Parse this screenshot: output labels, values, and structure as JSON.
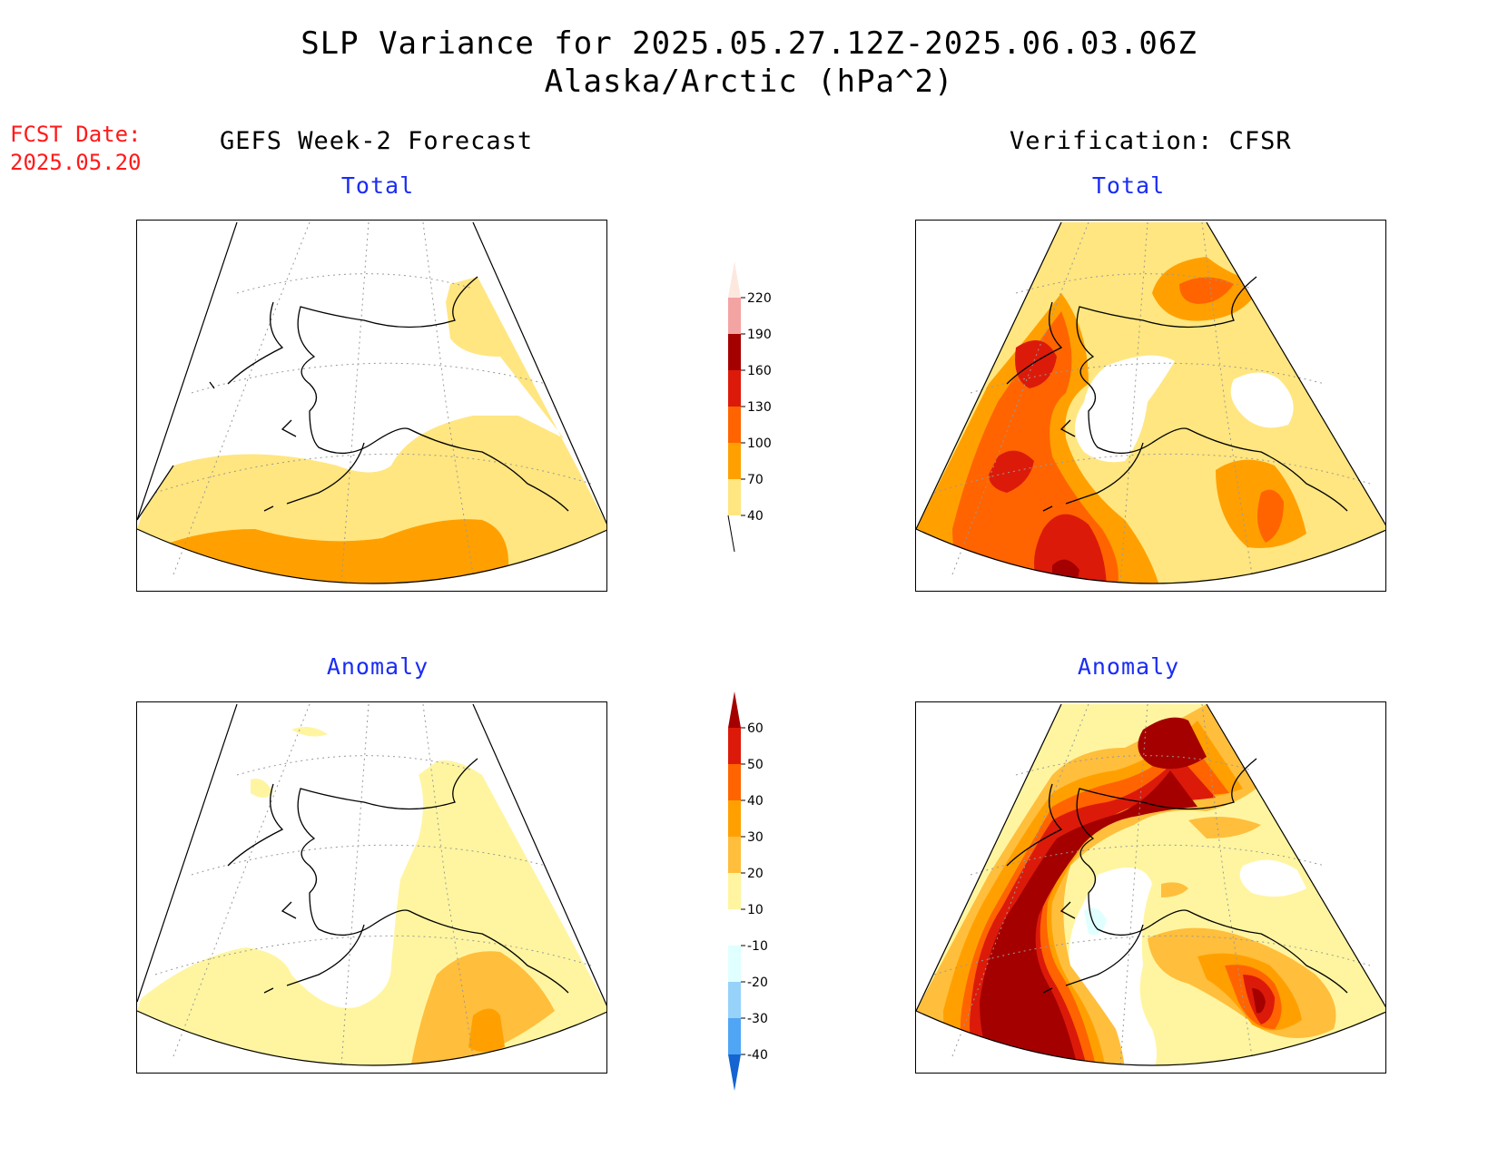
{
  "title": {
    "line1": "SLP Variance for 2025.05.27.12Z-2025.06.03.06Z",
    "line2": "Alaska/Arctic (hPa^2)"
  },
  "fcst_date": {
    "label": "FCST Date:",
    "value": "2025.05.20"
  },
  "columns": {
    "left": "GEFS Week-2 Forecast",
    "right": "Verification: CFSR"
  },
  "panels": {
    "top_left": "Total",
    "top_right": "Total",
    "bottom_left": "Anomaly",
    "bottom_right": "Anomaly"
  },
  "total_colorbar": {
    "levels": [
      "220",
      "190",
      "160",
      "130",
      "100",
      "70",
      "40"
    ],
    "colors": [
      "#fde8e0",
      "#f4a3a3",
      "#a50000",
      "#dc1a0a",
      "#ff6400",
      "#ffa000",
      "#ffe680"
    ]
  },
  "anomaly_colorbar": {
    "levels": [
      "60",
      "50",
      "40",
      "30",
      "20",
      "10",
      "-10",
      "-20",
      "-30",
      "-40"
    ],
    "colors": [
      "#a50000",
      "#dc1a0a",
      "#ff6400",
      "#ffa000",
      "#ffbe3c",
      "#fff5a0",
      "#ffffff",
      "#e0ffff",
      "#96d2fa",
      "#50a5f5",
      "#1464d2"
    ]
  }
}
